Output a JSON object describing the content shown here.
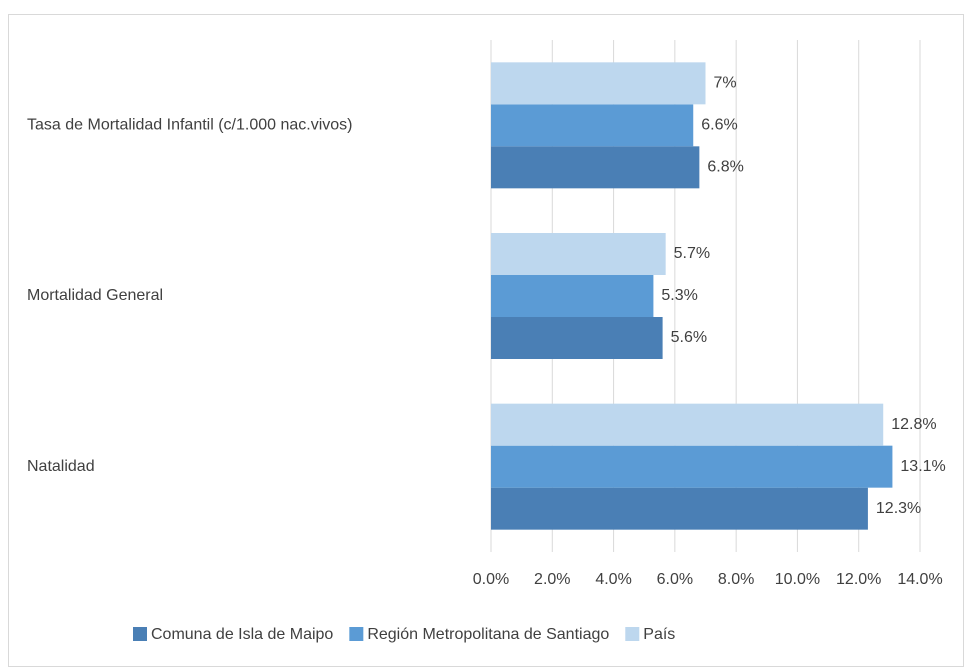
{
  "chart_data": {
    "type": "bar",
    "orientation": "horizontal",
    "categories": [
      "Tasa de Mortalidad Infantil (c/1.000 nac.vivos)",
      "Mortalidad General",
      "Natalidad"
    ],
    "series": [
      {
        "name": "Comuna de Isla de Maipo",
        "color": "#4a7fb5",
        "values": [
          6.8,
          5.6,
          12.3
        ],
        "value_labels": [
          "6.8%",
          "5.6%",
          "12.3%"
        ]
      },
      {
        "name": "Región Metropolitana de Santiago",
        "color": "#5b9bd5",
        "values": [
          6.6,
          5.3,
          13.1
        ],
        "value_labels": [
          "6.6%",
          "5.3%",
          "13.1%"
        ]
      },
      {
        "name": "País",
        "color": "#bdd7ee",
        "values": [
          7,
          5.7,
          12.8
        ],
        "value_labels": [
          "7%",
          "5.7%",
          "12.8%"
        ]
      }
    ],
    "xlim": [
      0,
      14
    ],
    "xticks": [
      {
        "value": 0,
        "label": "0.0%"
      },
      {
        "value": 2,
        "label": "2.0%"
      },
      {
        "value": 4,
        "label": "4.0%"
      },
      {
        "value": 6,
        "label": "6.0%"
      },
      {
        "value": 8,
        "label": "8.0%"
      },
      {
        "value": 10,
        "label": "10.0%"
      },
      {
        "value": 12,
        "label": "12.0%"
      },
      {
        "value": 14,
        "label": "14.0%"
      }
    ],
    "grid": true,
    "legend": "bottom"
  }
}
